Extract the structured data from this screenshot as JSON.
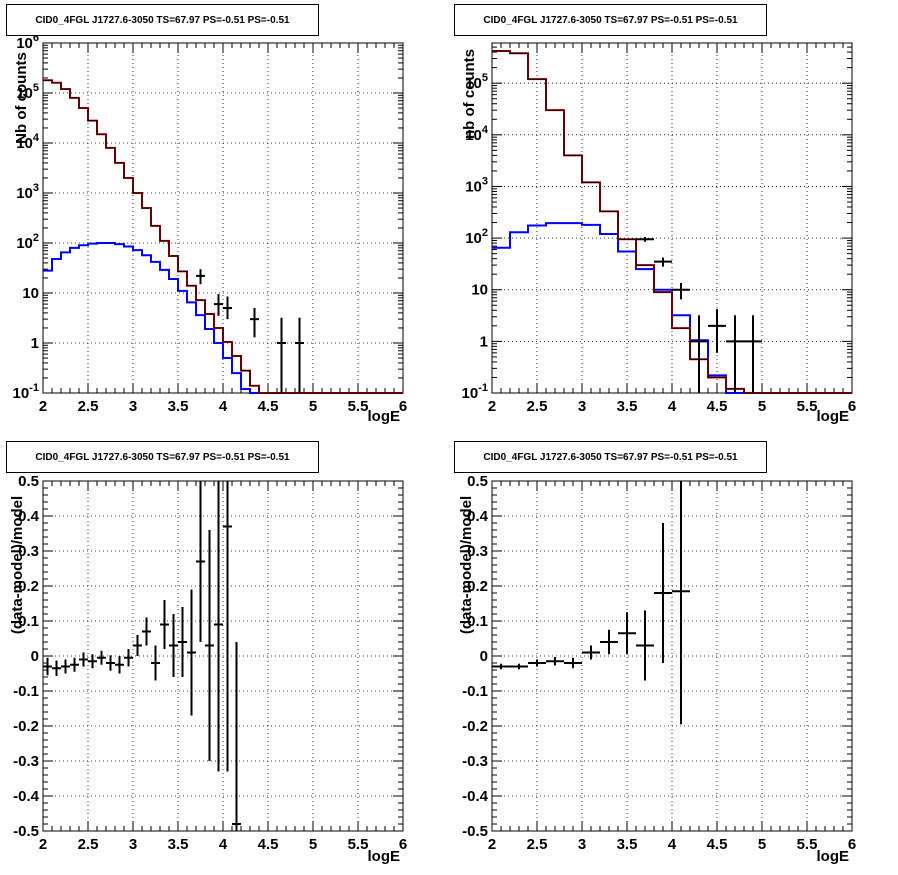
{
  "chart_data": [
    {
      "type": "line",
      "title": "CID0_4FGL J1727.6-3050 TS=67.97 PS=-0.51 PS=-0.51",
      "xlabel": "logE",
      "ylabel": "Nb of counts",
      "xlim": [
        2,
        6
      ],
      "ylim": [
        0.1,
        1000000
      ],
      "yscale": "log",
      "grid": true,
      "x_ticks": [
        "2",
        "2.5",
        "3",
        "3.5",
        "4",
        "4.5",
        "5",
        "5.5",
        "6"
      ],
      "y_ticks": [
        "10^{-1}",
        "1",
        "10",
        "10^{2}",
        "10^{3}",
        "10^{4}",
        "10^{5}",
        "10^{6}"
      ],
      "bin_edges": [
        2.0,
        2.1,
        2.2,
        2.3,
        2.4,
        2.5,
        2.6,
        2.7,
        2.8,
        2.9,
        3.0,
        3.1,
        3.2,
        3.3,
        3.4,
        3.5,
        3.6,
        3.7,
        3.8,
        3.9,
        4.0,
        4.1,
        4.2,
        4.3,
        4.4,
        4.5,
        4.6,
        4.7,
        4.8,
        4.9,
        5.0,
        5.1,
        5.2,
        5.3,
        5.4,
        5.5,
        5.6,
        5.7,
        5.8,
        5.9,
        6.0
      ],
      "series": [
        {
          "color": "#ff0000",
          "values": [
            180000,
            160000,
            120000,
            80000,
            50000,
            28000,
            15000,
            8000,
            4000,
            2000,
            1000,
            500,
            220,
            110,
            55,
            27,
            14,
            7.2,
            3.8,
            2.0,
            1.05,
            0.55,
            0.28,
            0.14,
            0.1,
            0.1,
            0.1,
            0.1,
            0.1,
            0.1,
            0.1,
            0.1,
            0.1,
            0.1,
            0.1,
            0.1,
            0.1,
            0.1,
            0.1,
            0.1
          ]
        },
        {
          "color": "#000000",
          "values": [
            180000,
            160000,
            120000,
            80000,
            50000,
            28000,
            15000,
            8000,
            4000,
            2000,
            1000,
            500,
            220,
            110,
            55,
            27,
            14,
            7.2,
            3.8,
            2.0,
            1.05,
            0.55,
            0.28,
            0.14,
            0.1,
            0.1,
            0.1,
            0.1,
            0.1,
            0.1,
            0.1,
            0.1,
            0.1,
            0.1,
            0.1,
            0.1,
            0.1,
            0.1,
            0.1,
            0.1
          ]
        },
        {
          "color": "#0000ff",
          "values": [
            28,
            48,
            65,
            80,
            90,
            97,
            100,
            100,
            95,
            85,
            72,
            57,
            42,
            29,
            19,
            11,
            6.5,
            3.6,
            1.9,
            1.0,
            0.5,
            0.25,
            0.12,
            0.1,
            0.1,
            0.1,
            0.1,
            0.1,
            0.1,
            0.1,
            0.1,
            0.1,
            0.1,
            0.1,
            0.1,
            0.1,
            0.1,
            0.1,
            0.1,
            0.1
          ]
        }
      ],
      "data_points": [
        {
          "x": 3.75,
          "y": 22,
          "lo": 15,
          "hi": 30
        },
        {
          "x": 3.95,
          "y": 6,
          "lo": 3.5,
          "hi": 9.5
        },
        {
          "x": 4.05,
          "y": 5,
          "lo": 3,
          "hi": 8.5
        },
        {
          "x": 4.35,
          "y": 3,
          "lo": 1.3,
          "hi": 5
        },
        {
          "x": 4.65,
          "y": 1,
          "lo": 0.1,
          "hi": 3.2
        },
        {
          "x": 4.85,
          "y": 1,
          "lo": 0.1,
          "hi": 3.2
        }
      ]
    },
    {
      "type": "line",
      "title": "CID0_4FGL J1727.6-3050 TS=67.97 PS=-0.51 PS=-0.51",
      "xlabel": "logE",
      "ylabel": "nb of counts",
      "xlim": [
        2,
        6
      ],
      "ylim": [
        0.1,
        600000
      ],
      "yscale": "log",
      "grid": true,
      "x_ticks": [
        "2",
        "2.5",
        "3",
        "3.5",
        "4",
        "4.5",
        "5",
        "5.5",
        "6"
      ],
      "y_ticks": [
        "10^{-1}",
        "1",
        "10",
        "10^{2}",
        "10^{3}",
        "10^{4}",
        "10^{5}"
      ],
      "bin_edges": [
        2.0,
        2.2,
        2.4,
        2.6,
        2.8,
        3.0,
        3.2,
        3.4,
        3.6,
        3.8,
        4.0,
        4.2,
        4.4,
        4.6,
        4.8,
        5.0,
        5.2,
        5.4,
        5.6,
        5.8,
        6.0
      ],
      "series": [
        {
          "color": "#ff0000",
          "values": [
            420000,
            380000,
            120000,
            30000,
            4000,
            1200,
            330,
            95,
            30,
            9,
            1.8,
            0.45,
            0.2,
            0.12,
            0.1,
            0.1,
            0.1,
            0.1,
            0.1,
            0.1
          ]
        },
        {
          "color": "#000000",
          "values": [
            420000,
            380000,
            120000,
            30000,
            4000,
            1200,
            330,
            95,
            30,
            9,
            1.8,
            0.45,
            0.2,
            0.12,
            0.1,
            0.1,
            0.1,
            0.1,
            0.1,
            0.1
          ]
        },
        {
          "color": "#0000ff",
          "values": [
            65,
            130,
            175,
            195,
            195,
            180,
            120,
            55,
            25,
            10,
            3.2,
            1.05,
            0.22,
            0.1,
            0.1,
            0.1,
            0.1,
            0.1,
            0.1,
            0.1
          ]
        }
      ],
      "data_points": [
        {
          "x": 3.7,
          "y": 95,
          "lo": 85,
          "hi": 105
        },
        {
          "x": 3.9,
          "y": 35,
          "lo": 28,
          "hi": 42
        },
        {
          "x": 4.1,
          "y": 10,
          "lo": 6.5,
          "hi": 13.5
        },
        {
          "x": 4.3,
          "y": 1,
          "lo": 0.1,
          "hi": 3.2
        },
        {
          "x": 4.5,
          "y": 2,
          "lo": 0.6,
          "hi": 4.2
        },
        {
          "x": 4.7,
          "y": 1,
          "lo": 0.1,
          "hi": 3.2
        },
        {
          "x": 4.9,
          "y": 1,
          "lo": 0.1,
          "hi": 3.2
        }
      ]
    },
    {
      "type": "scatter",
      "title": "CID0_4FGL J1727.6-3050 TS=67.97 PS=-0.51 PS=-0.51",
      "xlabel": "logE",
      "ylabel": "(data-model)/model",
      "xlim": [
        2,
        6
      ],
      "ylim": [
        -0.5,
        0.5
      ],
      "grid": true,
      "x_ticks": [
        "2",
        "2.5",
        "3",
        "3.5",
        "4",
        "4.5",
        "5",
        "5.5",
        "6"
      ],
      "y_ticks": [
        "-0.5",
        "-0.4",
        "-0.3",
        "-0.2",
        "-0.1",
        "0",
        "0.1",
        "0.2",
        "0.3",
        "0.4",
        "0.5"
      ],
      "xerr": 0.05,
      "points": [
        {
          "x": 2.05,
          "y": -0.03,
          "err": 0.025
        },
        {
          "x": 2.15,
          "y": -0.035,
          "err": 0.022
        },
        {
          "x": 2.25,
          "y": -0.03,
          "err": 0.02
        },
        {
          "x": 2.35,
          "y": -0.025,
          "err": 0.02
        },
        {
          "x": 2.45,
          "y": -0.01,
          "err": 0.02
        },
        {
          "x": 2.55,
          "y": -0.015,
          "err": 0.02
        },
        {
          "x": 2.65,
          "y": -0.005,
          "err": 0.02
        },
        {
          "x": 2.75,
          "y": -0.02,
          "err": 0.022
        },
        {
          "x": 2.85,
          "y": -0.025,
          "err": 0.025
        },
        {
          "x": 2.95,
          "y": -0.005,
          "err": 0.025
        },
        {
          "x": 3.05,
          "y": 0.03,
          "err": 0.03
        },
        {
          "x": 3.15,
          "y": 0.07,
          "err": 0.04
        },
        {
          "x": 3.25,
          "y": -0.02,
          "err": 0.05
        },
        {
          "x": 3.35,
          "y": 0.09,
          "err": 0.07
        },
        {
          "x": 3.45,
          "y": 0.03,
          "err": 0.09
        },
        {
          "x": 3.55,
          "y": 0.04,
          "err": 0.1
        },
        {
          "x": 3.65,
          "y": 0.01,
          "err": 0.18
        },
        {
          "x": 3.75,
          "y": 0.27,
          "err": 0.23
        },
        {
          "x": 3.85,
          "y": 0.03,
          "err": 0.33
        },
        {
          "x": 3.95,
          "y": 0.09,
          "err": 0.42
        },
        {
          "x": 4.05,
          "y": 0.37,
          "err": 0.7
        },
        {
          "x": 4.15,
          "y": -0.48,
          "err": 0.52
        }
      ]
    },
    {
      "type": "scatter",
      "title": "CID0_4FGL J1727.6-3050 TS=67.97 PS=-0.51 PS=-0.51",
      "xlabel": "logE",
      "ylabel": "(data-model)/model",
      "xlim": [
        2,
        6
      ],
      "ylim": [
        -0.5,
        0.5
      ],
      "grid": true,
      "x_ticks": [
        "2",
        "2.5",
        "3",
        "3.5",
        "4",
        "4.5",
        "5",
        "5.5",
        "6"
      ],
      "y_ticks": [
        "-0.5",
        "-0.4",
        "-0.3",
        "-0.2",
        "-0.1",
        "0",
        "0.1",
        "0.2",
        "0.3",
        "0.4",
        "0.5"
      ],
      "xerr": 0.1,
      "points": [
        {
          "x": 2.1,
          "y": -0.03,
          "err": 0.008
        },
        {
          "x": 2.3,
          "y": -0.03,
          "err": 0.008
        },
        {
          "x": 2.5,
          "y": -0.02,
          "err": 0.01
        },
        {
          "x": 2.7,
          "y": -0.015,
          "err": 0.012
        },
        {
          "x": 2.9,
          "y": -0.02,
          "err": 0.015
        },
        {
          "x": 3.1,
          "y": 0.01,
          "err": 0.02
        },
        {
          "x": 3.3,
          "y": 0.04,
          "err": 0.035
        },
        {
          "x": 3.5,
          "y": 0.065,
          "err": 0.06
        },
        {
          "x": 3.7,
          "y": 0.03,
          "err": 0.1
        },
        {
          "x": 3.9,
          "y": 0.18,
          "err": 0.2
        },
        {
          "x": 4.1,
          "y": 0.185,
          "err": 0.38
        }
      ]
    }
  ]
}
